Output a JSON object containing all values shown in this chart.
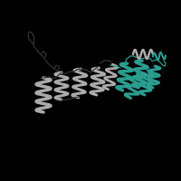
{
  "background_color": "#000000",
  "dark_gray": "#333333",
  "gray_color": "#777777",
  "light_gray": "#aaaaaa",
  "teal_color": "#2a9d8f",
  "teal_dark": "#1a7a6e",
  "fig_width": 2.0,
  "fig_height": 2.0,
  "dpi": 100,
  "xlim": [
    0,
    200
  ],
  "ylim": [
    0,
    200
  ]
}
